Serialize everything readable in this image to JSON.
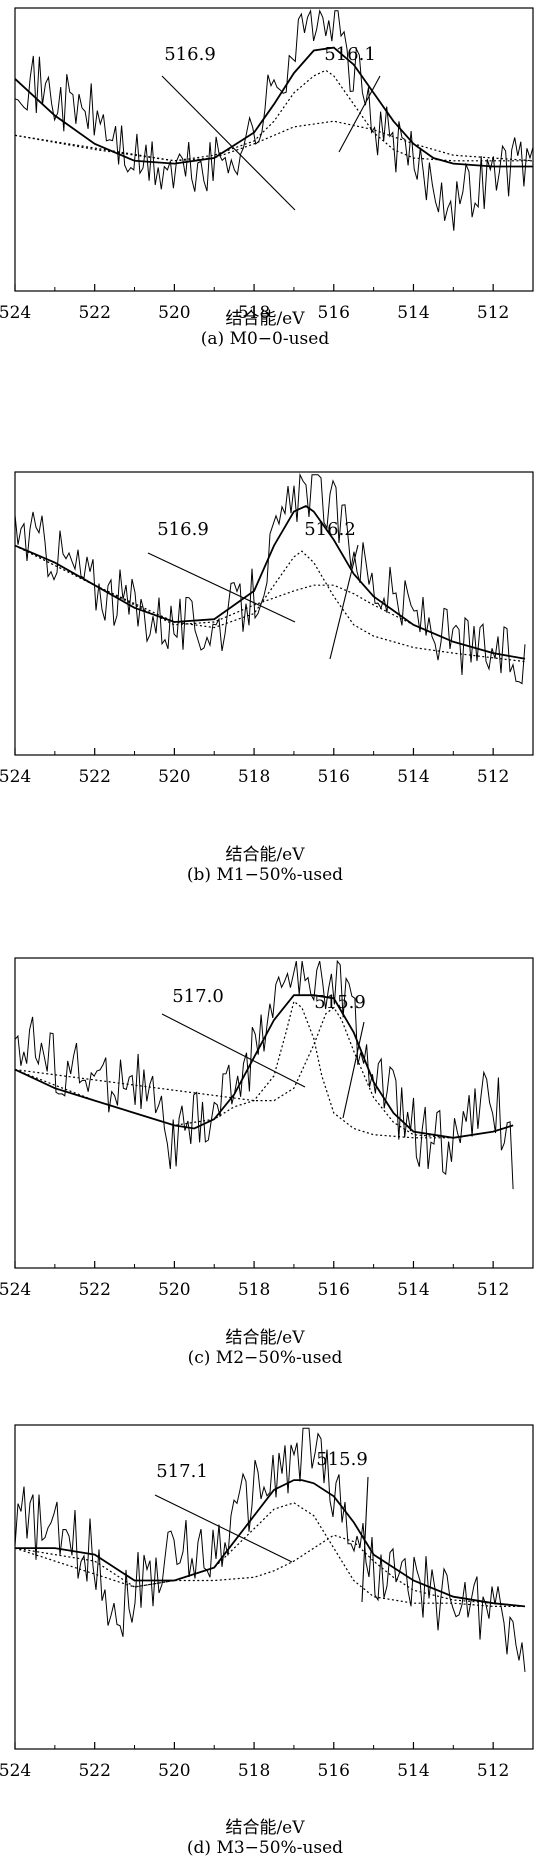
{
  "figure": {
    "panels": [
      {
        "caption": "(a) M0−0-used",
        "xlabel": "结合能/eV"
      },
      {
        "caption": "(b) M1−50%-used",
        "xlabel": "结合能/eV"
      },
      {
        "caption": "(c) M2−50%-used",
        "xlabel": "结合能/eV"
      },
      {
        "caption": "(d) M3−50%-used",
        "xlabel": "结合能/eV"
      }
    ]
  },
  "chart_data": [
    {
      "type": "line",
      "title": "(a) M0−0-used",
      "xlabel": "结合能/eV",
      "ylabel": "",
      "x_reversed": true,
      "xlim": [
        524,
        511
      ],
      "xticks": [
        524,
        522,
        520,
        518,
        516,
        514,
        512
      ],
      "ylim": [
        0,
        1
      ],
      "annotations": [
        {
          "text": "516.9",
          "x": 516.9
        },
        {
          "text": "516.1",
          "x": 516.1
        }
      ],
      "series": [
        {
          "role": "raw",
          "style": "noisy",
          "x": [
            524,
            523,
            522,
            521,
            520,
            519,
            518,
            517.5,
            517,
            516.5,
            516,
            515.5,
            515,
            514,
            513,
            512,
            511
          ],
          "values": [
            0.78,
            0.68,
            0.62,
            0.45,
            0.42,
            0.44,
            0.55,
            0.72,
            0.86,
            0.98,
            0.94,
            0.78,
            0.6,
            0.45,
            0.32,
            0.42,
            0.48
          ]
        },
        {
          "role": "envelope",
          "style": "solid",
          "x": [
            524,
            523,
            522,
            521,
            520,
            519,
            518,
            517.5,
            517,
            516.5,
            516,
            515.5,
            515,
            514.5,
            514,
            513.5,
            513,
            512,
            511
          ],
          "values": [
            0.75,
            0.62,
            0.52,
            0.46,
            0.45,
            0.47,
            0.56,
            0.66,
            0.77,
            0.85,
            0.86,
            0.8,
            0.7,
            0.6,
            0.52,
            0.47,
            0.45,
            0.44,
            0.44
          ]
        },
        {
          "role": "component",
          "name": "516.9",
          "style": "dotted",
          "x": [
            524,
            522,
            520,
            519,
            518,
            517,
            516,
            515,
            514,
            513,
            511
          ],
          "values": [
            0.55,
            0.5,
            0.46,
            0.47,
            0.52,
            0.58,
            0.6,
            0.57,
            0.52,
            0.48,
            0.46
          ]
        },
        {
          "role": "component",
          "name": "516.1",
          "style": "dotted",
          "x": [
            524,
            520,
            519,
            518,
            517.5,
            517,
            516.5,
            516.2,
            516,
            515.5,
            515,
            514.5,
            514,
            513,
            511
          ],
          "values": [
            0.55,
            0.46,
            0.48,
            0.53,
            0.6,
            0.7,
            0.76,
            0.78,
            0.76,
            0.66,
            0.56,
            0.5,
            0.47,
            0.46,
            0.46
          ]
        }
      ]
    },
    {
      "type": "line",
      "title": "(b) M1−50%-used",
      "xlabel": "结合能/eV",
      "ylabel": "",
      "x_reversed": true,
      "xlim": [
        524,
        511
      ],
      "xticks": [
        524,
        522,
        520,
        518,
        516,
        514,
        512
      ],
      "ylim": [
        0,
        1
      ],
      "annotations": [
        {
          "text": "516.9",
          "x": 516.9
        },
        {
          "text": "516.2",
          "x": 516.2
        }
      ],
      "series": [
        {
          "role": "raw",
          "style": "noisy",
          "x": [
            524,
            523,
            522,
            521,
            520,
            519,
            518,
            517.5,
            517,
            516.5,
            516,
            515.5,
            515,
            514,
            513,
            512,
            511.2
          ],
          "values": [
            0.8,
            0.72,
            0.6,
            0.52,
            0.46,
            0.45,
            0.56,
            0.74,
            0.9,
            0.96,
            0.86,
            0.74,
            0.6,
            0.5,
            0.4,
            0.36,
            0.32
          ]
        },
        {
          "role": "envelope",
          "style": "solid",
          "x": [
            524,
            523,
            522,
            521,
            520,
            519,
            518,
            517.5,
            517,
            516.7,
            516.5,
            516,
            515.5,
            515,
            514,
            513,
            512,
            511.2
          ],
          "values": [
            0.74,
            0.68,
            0.6,
            0.52,
            0.47,
            0.48,
            0.58,
            0.74,
            0.86,
            0.88,
            0.86,
            0.76,
            0.64,
            0.56,
            0.46,
            0.4,
            0.36,
            0.34
          ]
        },
        {
          "role": "component",
          "name": "516.9",
          "style": "dotted",
          "x": [
            524,
            522,
            520,
            519,
            518,
            517.5,
            517,
            516.8,
            516.5,
            516,
            515.5,
            515,
            514,
            513,
            511.2
          ],
          "values": [
            0.74,
            0.6,
            0.47,
            0.45,
            0.5,
            0.6,
            0.7,
            0.72,
            0.68,
            0.56,
            0.46,
            0.42,
            0.38,
            0.36,
            0.33
          ]
        },
        {
          "role": "component",
          "name": "516.2",
          "style": "dotted",
          "x": [
            524,
            520,
            519,
            518,
            517,
            516.5,
            516,
            515.5,
            515,
            514,
            513,
            512,
            511.2
          ],
          "values": [
            0.74,
            0.46,
            0.47,
            0.53,
            0.58,
            0.6,
            0.6,
            0.57,
            0.53,
            0.46,
            0.4,
            0.36,
            0.34
          ]
        }
      ]
    },
    {
      "type": "line",
      "title": "(c) M2−50%-used",
      "xlabel": "结合能/eV",
      "ylabel": "",
      "x_reversed": true,
      "xlim": [
        524,
        511
      ],
      "xticks": [
        524,
        522,
        520,
        518,
        516,
        514,
        512
      ],
      "ylim": [
        0,
        1
      ],
      "annotations": [
        {
          "text": "517.0",
          "x": 517.0
        },
        {
          "text": "515.9",
          "x": 515.9
        }
      ],
      "series": [
        {
          "role": "raw",
          "style": "noisy",
          "x": [
            524,
            523,
            522,
            521,
            520,
            519.5,
            519,
            518,
            517.5,
            517,
            516.5,
            516,
            515.5,
            515,
            514,
            513,
            512,
            511.5
          ],
          "values": [
            0.76,
            0.66,
            0.6,
            0.62,
            0.4,
            0.46,
            0.5,
            0.7,
            0.88,
            0.94,
            0.92,
            0.95,
            0.8,
            0.62,
            0.44,
            0.4,
            0.56,
            0.36
          ]
        },
        {
          "role": "envelope",
          "style": "solid",
          "x": [
            524,
            523,
            522,
            521,
            520,
            519.5,
            519,
            518.5,
            518,
            517.5,
            517,
            516.5,
            516,
            515.5,
            515,
            514.5,
            514,
            513,
            512,
            511.5
          ],
          "values": [
            0.64,
            0.58,
            0.54,
            0.5,
            0.46,
            0.45,
            0.48,
            0.56,
            0.68,
            0.8,
            0.88,
            0.88,
            0.87,
            0.76,
            0.6,
            0.5,
            0.44,
            0.42,
            0.44,
            0.46
          ]
        },
        {
          "role": "component",
          "name": "517.0",
          "style": "dotted",
          "x": [
            524,
            522,
            520,
            519,
            518.5,
            518,
            517.5,
            517.2,
            517,
            516.8,
            516.5,
            516.3,
            516,
            515.5,
            515,
            514,
            513,
            512,
            511.5
          ],
          "values": [
            0.64,
            0.54,
            0.46,
            0.48,
            0.52,
            0.54,
            0.62,
            0.76,
            0.86,
            0.84,
            0.74,
            0.62,
            0.5,
            0.45,
            0.43,
            0.42,
            0.42,
            0.44,
            0.46
          ]
        },
        {
          "role": "component",
          "name": "515.9",
          "style": "dotted",
          "x": [
            524,
            518,
            517.5,
            517,
            516.5,
            516.2,
            516,
            515.8,
            515.5,
            515,
            514.5,
            514,
            513,
            512,
            511.5
          ],
          "values": [
            0.64,
            0.54,
            0.54,
            0.58,
            0.72,
            0.82,
            0.84,
            0.8,
            0.7,
            0.55,
            0.47,
            0.43,
            0.42,
            0.44,
            0.46
          ]
        }
      ]
    },
    {
      "type": "line",
      "title": "(d) M3−50%-used",
      "xlabel": "结合能/eV",
      "ylabel": "",
      "x_reversed": true,
      "xlim": [
        524,
        511
      ],
      "xticks": [
        524,
        522,
        520,
        518,
        516,
        514,
        512
      ],
      "ylim": [
        0,
        1
      ],
      "annotations": [
        {
          "text": "517.1",
          "x": 517.1
        },
        {
          "text": "515.9",
          "x": 515.9
        }
      ],
      "series": [
        {
          "role": "raw",
          "style": "noisy",
          "x": [
            524,
            523,
            522,
            521.5,
            521,
            520,
            519,
            518,
            517.5,
            517,
            516.5,
            516,
            515.5,
            515,
            514,
            513,
            512,
            511.2
          ],
          "values": [
            0.72,
            0.66,
            0.6,
            0.42,
            0.5,
            0.6,
            0.62,
            0.8,
            0.84,
            0.9,
            0.96,
            0.8,
            0.66,
            0.56,
            0.5,
            0.46,
            0.44,
            0.3
          ]
        },
        {
          "role": "envelope",
          "style": "solid",
          "x": [
            524,
            523,
            522,
            521,
            520,
            519,
            518.5,
            518,
            517.5,
            517,
            516.8,
            516.5,
            516,
            515.5,
            515,
            514,
            513,
            512,
            511.2
          ],
          "values": [
            0.62,
            0.62,
            0.6,
            0.52,
            0.52,
            0.56,
            0.64,
            0.72,
            0.8,
            0.83,
            0.83,
            0.82,
            0.78,
            0.7,
            0.6,
            0.52,
            0.47,
            0.45,
            0.44
          ]
        },
        {
          "role": "component",
          "name": "517.1",
          "style": "dotted",
          "x": [
            524,
            523,
            522,
            521,
            520,
            519,
            518.5,
            518,
            517.5,
            517,
            516.5,
            516,
            515.5,
            515,
            514,
            513,
            512,
            511.2
          ],
          "values": [
            0.62,
            0.6,
            0.58,
            0.5,
            0.52,
            0.56,
            0.62,
            0.68,
            0.74,
            0.76,
            0.72,
            0.62,
            0.52,
            0.47,
            0.45,
            0.45,
            0.44,
            0.44
          ]
        },
        {
          "role": "component",
          "name": "515.9",
          "style": "dotted",
          "x": [
            524,
            521,
            520,
            519,
            518,
            517.5,
            517,
            516.5,
            516,
            515.5,
            515,
            514.5,
            514,
            513,
            512,
            511.2
          ],
          "values": [
            0.62,
            0.5,
            0.52,
            0.52,
            0.53,
            0.55,
            0.58,
            0.62,
            0.66,
            0.64,
            0.58,
            0.53,
            0.49,
            0.46,
            0.45,
            0.44
          ]
        }
      ]
    }
  ]
}
